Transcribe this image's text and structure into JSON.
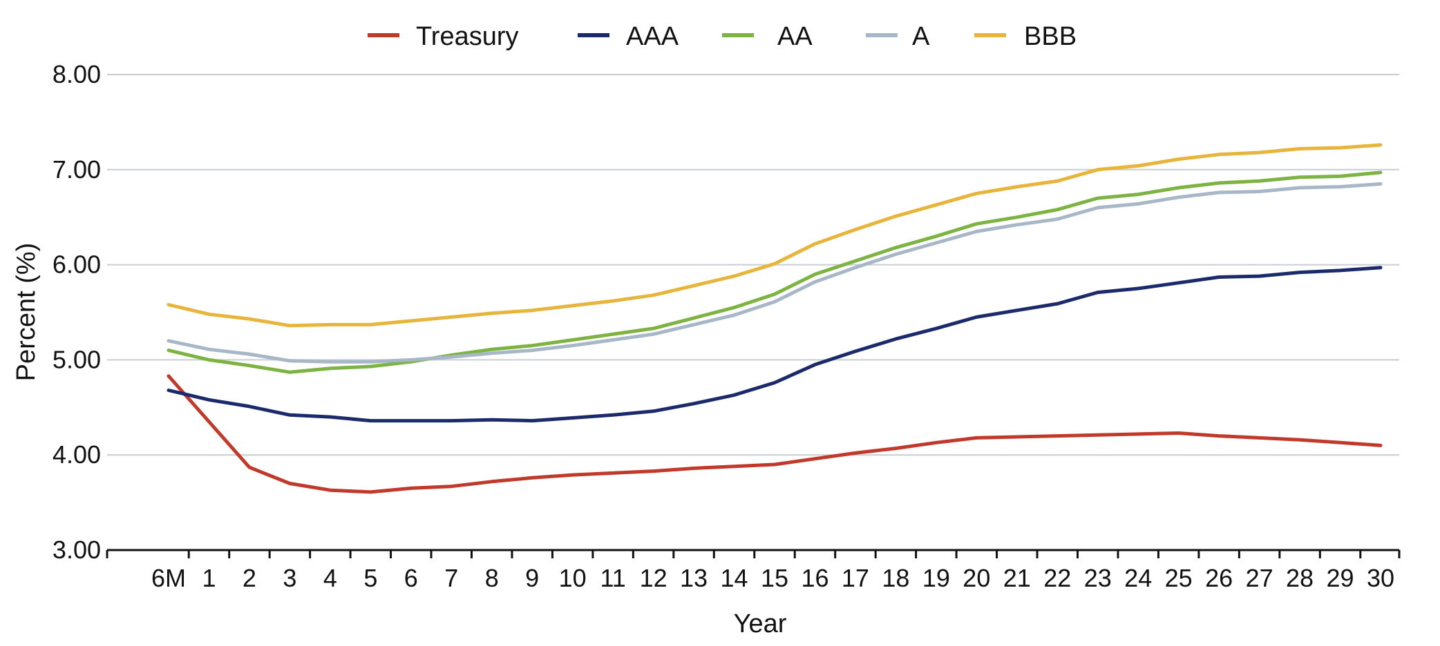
{
  "chart_data": {
    "type": "line",
    "xlabel": "Year",
    "ylabel": "Percent (%)",
    "ylim": [
      3.0,
      8.0
    ],
    "y_ticks": [
      "3.00",
      "4.00",
      "5.00",
      "6.00",
      "7.00",
      "8.00"
    ],
    "categories": [
      "6M",
      "1",
      "2",
      "3",
      "4",
      "5",
      "6",
      "7",
      "8",
      "9",
      "10",
      "11",
      "12",
      "13",
      "14",
      "15",
      "16",
      "17",
      "18",
      "19",
      "20",
      "21",
      "22",
      "23",
      "24",
      "25",
      "26",
      "27",
      "28",
      "29",
      "30"
    ],
    "grid": "horizontal",
    "legend_position": "top",
    "series": [
      {
        "name": "Treasury",
        "color": "#C0392B",
        "values": [
          4.83,
          4.35,
          3.87,
          3.7,
          3.63,
          3.61,
          3.65,
          3.67,
          3.72,
          3.76,
          3.79,
          3.81,
          3.83,
          3.86,
          3.88,
          3.9,
          3.96,
          4.02,
          4.07,
          4.13,
          4.18,
          4.19,
          4.2,
          4.21,
          4.22,
          4.23,
          4.2,
          4.18,
          4.16,
          4.13,
          4.1
        ]
      },
      {
        "name": "AAA",
        "color": "#1B2A6B",
        "values": [
          4.68,
          4.58,
          4.51,
          4.42,
          4.4,
          4.36,
          4.36,
          4.36,
          4.37,
          4.36,
          4.39,
          4.42,
          4.46,
          4.54,
          4.63,
          4.76,
          4.95,
          5.09,
          5.22,
          5.33,
          5.45,
          5.52,
          5.59,
          5.71,
          5.75,
          5.81,
          5.87,
          5.88,
          5.92,
          5.94,
          5.97
        ]
      },
      {
        "name": "AA",
        "color": "#7CB342",
        "values": [
          5.1,
          5.0,
          4.94,
          4.87,
          4.91,
          4.93,
          4.98,
          5.05,
          5.11,
          5.15,
          5.21,
          5.27,
          5.33,
          5.44,
          5.55,
          5.69,
          5.9,
          6.04,
          6.18,
          6.3,
          6.43,
          6.5,
          6.58,
          6.7,
          6.74,
          6.81,
          6.86,
          6.88,
          6.92,
          6.93,
          6.97
        ]
      },
      {
        "name": "A",
        "color": "#A7B7C8",
        "values": [
          5.2,
          5.11,
          5.06,
          4.99,
          4.98,
          4.98,
          5.0,
          5.03,
          5.07,
          5.1,
          5.15,
          5.21,
          5.27,
          5.37,
          5.47,
          5.61,
          5.82,
          5.97,
          6.11,
          6.23,
          6.35,
          6.42,
          6.48,
          6.6,
          6.64,
          6.71,
          6.76,
          6.77,
          6.81,
          6.82,
          6.85
        ]
      },
      {
        "name": "BBB",
        "color": "#E8B53C",
        "values": [
          5.58,
          5.48,
          5.43,
          5.36,
          5.37,
          5.37,
          5.41,
          5.45,
          5.49,
          5.52,
          5.57,
          5.62,
          5.68,
          5.78,
          5.88,
          6.01,
          6.22,
          6.37,
          6.51,
          6.63,
          6.75,
          6.82,
          6.88,
          7.0,
          7.04,
          7.11,
          7.16,
          7.18,
          7.22,
          7.23,
          7.26
        ]
      }
    ]
  }
}
